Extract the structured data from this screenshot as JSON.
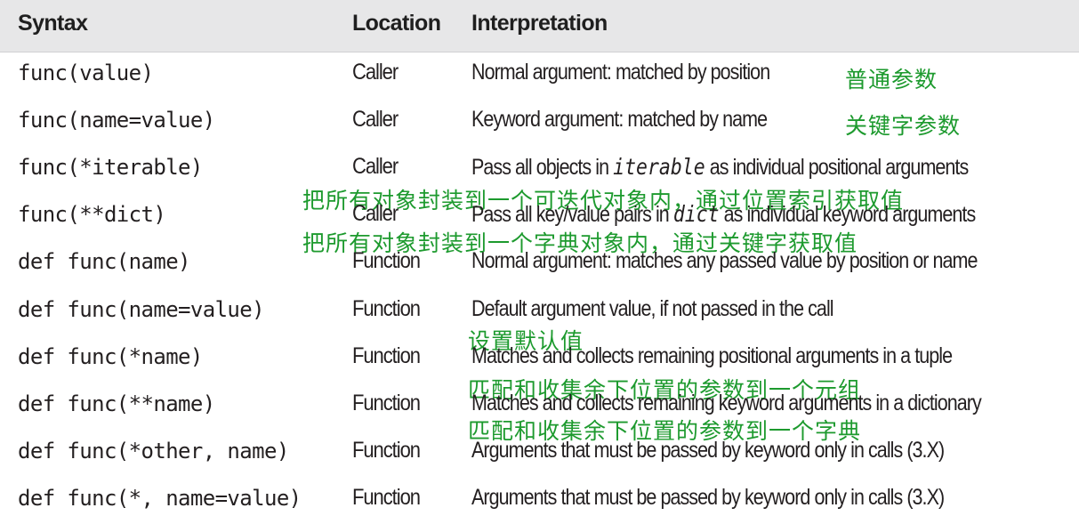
{
  "header": {
    "syntax": "Syntax",
    "location": "Location",
    "interpretation": "Interpretation"
  },
  "rows": [
    {
      "syntax": "func(value)",
      "location": "Caller",
      "interpretation": "Normal argument: matched by position",
      "note": "普通参数"
    },
    {
      "syntax": "func(name=value)",
      "location": "Caller",
      "interpretation": "Keyword argument: matched by name",
      "note": "关键字参数"
    },
    {
      "syntax": "func(*iterable)",
      "location": "Caller",
      "interp_pre": "Pass all objects in ",
      "interp_code": "iterable",
      "interp_post": " as individual positional arguments",
      "note": "把所有对象封装到一个可迭代对象内，通过位置索引获取值"
    },
    {
      "syntax": "func(**dict)",
      "location": "Caller",
      "interp_pre": "Pass all key/value pairs in ",
      "interp_code": "dict",
      "interp_post": " as individual keyword arguments",
      "note": "把所有对象封装到一个字典对象内，通过关键字获取值"
    },
    {
      "syntax": "def func(name)",
      "location": "Function",
      "interpretation": "Normal argument: matches any passed value by position or name"
    },
    {
      "syntax": "def func(name=value)",
      "location": "Function",
      "interpretation": "Default argument value, if not passed in the call",
      "note": "设置默认值"
    },
    {
      "syntax": "def func(*name)",
      "location": "Function",
      "interpretation": "Matches and collects remaining positional arguments in a tuple",
      "note": "匹配和收集余下位置的参数到一个元组"
    },
    {
      "syntax": "def func(**name)",
      "location": "Function",
      "interpretation": "Matches and collects remaining keyword arguments in a dictionary",
      "note": "匹配和收集余下位置的参数到一个字典"
    },
    {
      "syntax": "def func(*other, name)",
      "location": "Function",
      "interpretation": "Arguments that must be passed by keyword only in calls (3.X)"
    },
    {
      "syntax": "def func(*, name=value)",
      "location": "Function",
      "interpretation": "Arguments that must be passed by keyword only in calls (3.X)"
    }
  ],
  "colors": {
    "header_bg": "#e7e7e8",
    "text": "#231f20",
    "annotation": "#1d9a2e"
  }
}
